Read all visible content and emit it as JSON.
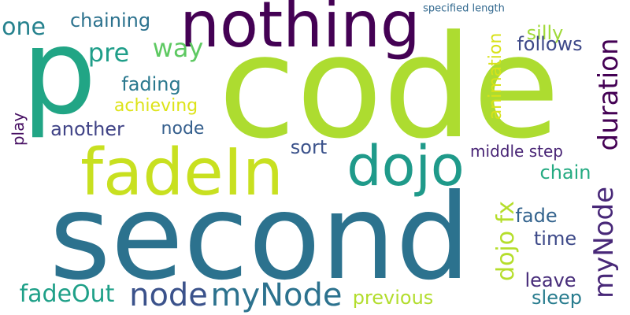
{
  "words": [
    {
      "text": "code",
      "color": "#addc30",
      "orientation": "horizontal"
    },
    {
      "text": "second",
      "color": "#2c728e",
      "orientation": "horizontal"
    },
    {
      "text": "nothing",
      "color": "#440154",
      "orientation": "horizontal"
    },
    {
      "text": "fadeIn",
      "color": "#c8e020",
      "orientation": "horizontal"
    },
    {
      "text": "p",
      "color": "#21a585",
      "orientation": "horizontal"
    },
    {
      "text": "dojo",
      "color": "#1f9a8a",
      "orientation": "horizontal"
    },
    {
      "text": "duration",
      "color": "#440154",
      "orientation": "vertical"
    },
    {
      "text": "myNode",
      "color": "#482878",
      "orientation": "vertical"
    },
    {
      "text": "node",
      "color": "#3b528b",
      "orientation": "horizontal"
    },
    {
      "text": "myNode",
      "color": "#2c728e",
      "orientation": "horizontal"
    },
    {
      "text": "dojo fx",
      "color": "#b5de2b",
      "orientation": "vertical"
    },
    {
      "text": "way",
      "color": "#5ec962",
      "orientation": "horizontal"
    },
    {
      "text": "pre",
      "color": "#1f9e89",
      "orientation": "horizontal"
    },
    {
      "text": "one",
      "color": "#26828e",
      "orientation": "horizontal"
    },
    {
      "text": "chaining",
      "color": "#2c728e",
      "orientation": "horizontal"
    },
    {
      "text": "silly",
      "color": "#a0da39",
      "orientation": "horizontal"
    },
    {
      "text": "specified length",
      "color": "#31688e",
      "orientation": "horizontal"
    },
    {
      "text": "animation",
      "color": "#d8e219",
      "orientation": "vertical"
    },
    {
      "text": "follows",
      "color": "#3e4989",
      "orientation": "horizontal"
    },
    {
      "text": "fading",
      "color": "#2a788e",
      "orientation": "horizontal"
    },
    {
      "text": "achieving",
      "color": "#dde318",
      "orientation": "horizontal"
    },
    {
      "text": "play",
      "color": "#471063",
      "orientation": "vertical"
    },
    {
      "text": "another",
      "color": "#414487",
      "orientation": "horizontal"
    },
    {
      "text": "node",
      "color": "#355f8d",
      "orientation": "horizontal"
    },
    {
      "text": "sort",
      "color": "#3b528b",
      "orientation": "horizontal"
    },
    {
      "text": "middle step",
      "color": "#482475",
      "orientation": "horizontal"
    },
    {
      "text": "chain",
      "color": "#25ab82",
      "orientation": "horizontal"
    },
    {
      "text": "fade",
      "color": "#33638d",
      "orientation": "horizontal"
    },
    {
      "text": "time",
      "color": "#3e4a89",
      "orientation": "horizontal"
    },
    {
      "text": "leave",
      "color": "#472c7a",
      "orientation": "horizontal"
    },
    {
      "text": "sleep",
      "color": "#287c8e",
      "orientation": "horizontal"
    },
    {
      "text": "previous",
      "color": "#b2dd2d",
      "orientation": "horizontal"
    },
    {
      "text": "fadeOut",
      "color": "#1fa088",
      "orientation": "horizontal"
    }
  ]
}
